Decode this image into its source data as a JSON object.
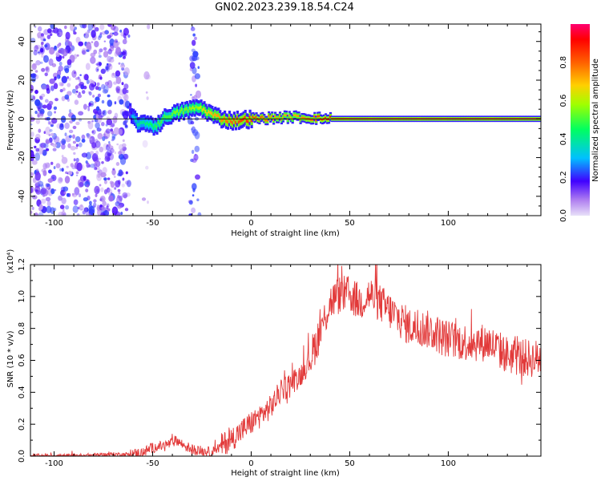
{
  "title": "GN02.2023.239.18.54.C24",
  "chart_data": [
    {
      "type": "heatmap",
      "xlabel": "Height of straight line (km)",
      "ylabel": "Frequency (Hz)",
      "xlim": [
        -112,
        147
      ],
      "ylim": [
        -50,
        49
      ],
      "xticks": [
        -100,
        -50,
        0,
        50,
        100
      ],
      "yticks": [
        -40,
        -20,
        0,
        20,
        40
      ],
      "colorbar": {
        "label": "Normalized spectral amplitude",
        "range": [
          0.0,
          1.0
        ],
        "ticks": [
          0.0,
          0.2,
          0.4,
          0.6,
          0.8
        ]
      },
      "features": [
        {
          "description": "broadband noise",
          "x_range": [
            -112,
            -62
          ],
          "amplitude": 0.1
        },
        {
          "description": "faint vertical band",
          "x_range": [
            -55,
            -52
          ],
          "amplitude": 0.05
        },
        {
          "description": "vertical noise band",
          "x_range": [
            -31,
            -26
          ],
          "amplitude": 0.15
        }
      ],
      "ridge": {
        "x": [
          -62,
          -60,
          -58,
          -55,
          -52,
          -50,
          -48,
          -45,
          -42,
          -38,
          -35,
          -32,
          -30,
          -28,
          -25,
          -20,
          -15,
          -10,
          -5,
          0,
          10,
          20,
          30,
          40,
          50,
          60,
          80,
          100,
          120,
          147
        ],
        "freq": [
          3,
          0,
          -2,
          -3,
          -2,
          -4,
          -3,
          0,
          2,
          3,
          4,
          5,
          5,
          6,
          5,
          2,
          0,
          -1,
          -0.5,
          0,
          0.5,
          1,
          0.5,
          0,
          0,
          0,
          0,
          0,
          0,
          0
        ],
        "amplitude": [
          0.2,
          0.35,
          0.4,
          0.4,
          0.45,
          0.45,
          0.5,
          0.5,
          0.5,
          0.55,
          0.55,
          0.55,
          0.6,
          0.55,
          0.65,
          0.7,
          0.75,
          0.8,
          0.85,
          0.85,
          0.75,
          0.7,
          0.8,
          0.9,
          0.95,
          0.97,
          0.97,
          0.97,
          0.97,
          0.97
        ]
      }
    },
    {
      "type": "line",
      "xlabel": "Height of straight line (km)",
      "ylabel": "SNR (10 * v/v)",
      "scale_note": "(x10⁴)",
      "xlim": [
        -112,
        147
      ],
      "ylim": [
        0.0,
        1.2
      ],
      "xticks": [
        -100,
        -50,
        0,
        50,
        100
      ],
      "yticks": [
        0.0,
        0.2,
        0.4,
        0.6,
        0.8,
        1.0,
        1.2
      ],
      "ytick_labels": [
        "0.0",
        "0.2",
        "0.4",
        "0.6",
        "0.8",
        "1.0",
        "1.2"
      ],
      "color": "#e23a3a",
      "series": [
        {
          "x": [
            -112,
            -100,
            -90,
            -80,
            -70,
            -60,
            -55,
            -50,
            -45,
            -40,
            -38,
            -35,
            -30,
            -25,
            -20,
            -15,
            -10,
            -5,
            0,
            5,
            10,
            15,
            20,
            25,
            30,
            33,
            36,
            40,
            45,
            50,
            55,
            60,
            65,
            70,
            75,
            80,
            90,
            100,
            110,
            120,
            130,
            140,
            147
          ],
          "values": [
            0.0,
            0.0,
            0.0,
            0.005,
            0.01,
            0.01,
            0.02,
            0.05,
            0.06,
            0.08,
            0.1,
            0.07,
            0.04,
            0.03,
            0.02,
            0.06,
            0.1,
            0.15,
            0.2,
            0.25,
            0.3,
            0.4,
            0.45,
            0.5,
            0.6,
            0.7,
            0.8,
            0.95,
            1.0,
            1.0,
            0.95,
            1.0,
            0.95,
            0.9,
            0.85,
            0.8,
            0.78,
            0.72,
            0.7,
            0.7,
            0.62,
            0.6,
            0.6
          ]
        }
      ]
    }
  ]
}
